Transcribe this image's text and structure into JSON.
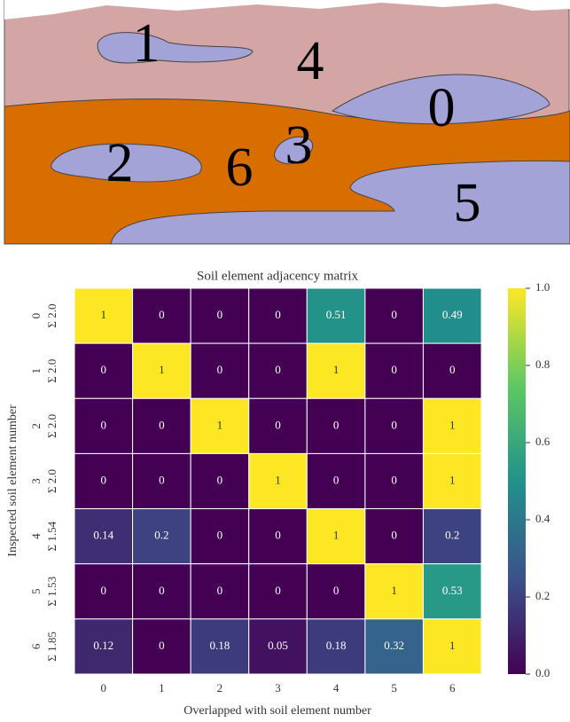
{
  "diagram": {
    "labels": [
      "1",
      "4",
      "0",
      "2",
      "6",
      "3",
      "5"
    ]
  },
  "chart_data": {
    "type": "heatmap",
    "title": "Soil element adjacency matrix",
    "xlabel": "Overlapped with soil element number",
    "ylabel": "Inspected soil element number",
    "x_categories": [
      "0",
      "1",
      "2",
      "3",
      "4",
      "5",
      "6"
    ],
    "y_categories": [
      "0",
      "1",
      "2",
      "3",
      "4",
      "5",
      "6"
    ],
    "y_sums": [
      "Σ 2.0",
      "Σ 2.0",
      "Σ 2.0",
      "Σ 2.0",
      "Σ 1.54",
      "Σ 1.53",
      "Σ 1.85"
    ],
    "values": [
      [
        1,
        0,
        0,
        0,
        0.51,
        0,
        0.49
      ],
      [
        0,
        1,
        0,
        0,
        1,
        0,
        0
      ],
      [
        0,
        0,
        1,
        0,
        0,
        0,
        1
      ],
      [
        0,
        0,
        0,
        1,
        0,
        0,
        1
      ],
      [
        0.14,
        0.2,
        0,
        0,
        1,
        0,
        0.2
      ],
      [
        0,
        0,
        0,
        0,
        0,
        1,
        0.53
      ],
      [
        0.12,
        0,
        0.18,
        0.05,
        0.18,
        0.32,
        1
      ]
    ],
    "colormap": "viridis",
    "zlim": [
      0,
      1
    ],
    "zticks": [
      {
        "value": 0,
        "label": "0.0"
      },
      0.2,
      0.4,
      0.6,
      0.8,
      {
        "value": 1,
        "label": "1.0"
      }
    ]
  }
}
